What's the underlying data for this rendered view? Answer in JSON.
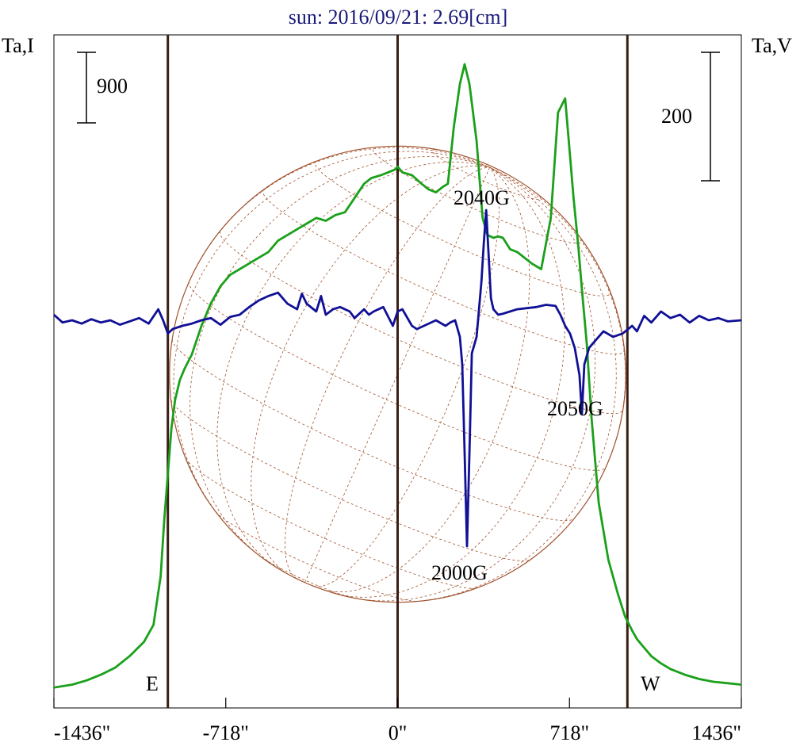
{
  "chart_data": {
    "type": "line",
    "title": "sun: 2016/09/21: 2.69[cm]",
    "title_color": "#1a1a7a",
    "ylabel_left": "Ta,I",
    "ylabel_right": "Ta,V",
    "xlim": [
      -1436,
      1436
    ],
    "x_ticks": [
      {
        "v": -1436,
        "label": "-1436\""
      },
      {
        "v": -718,
        "label": "-718\""
      },
      {
        "v": 0,
        "label": "0\""
      },
      {
        "v": 718,
        "label": "718\""
      },
      {
        "v": 1436,
        "label": "1436\""
      }
    ],
    "limb_labels": {
      "east": "E",
      "west": "W"
    },
    "scale_bars": {
      "left": "900",
      "right": "200"
    },
    "limb_lines_x": [
      -960,
      0,
      960
    ],
    "solar_radius": 953,
    "grid": false,
    "colors": {
      "intensity": "#1aa01a",
      "polarization": "#101096",
      "disk": "#a0522d",
      "limb_lines": "#3a1e14"
    },
    "annotations": [
      "2040G",
      "2050G",
      "2000G"
    ],
    "series": [
      {
        "key": "I",
        "color": "#1aa01a",
        "x": [
          -1436,
          -1360,
          -1300,
          -1240,
          -1180,
          -1120,
          -1060,
          -1020,
          -990,
          -975,
          -960,
          -945,
          -930,
          -910,
          -890,
          -860,
          -820,
          -780,
          -740,
          -700,
          -660,
          -620,
          -580,
          -540,
          -500,
          -460,
          -420,
          -380,
          -340,
          -300,
          -260,
          -220,
          -180,
          -140,
          -110,
          -70,
          -40,
          -10,
          0,
          20,
          60,
          100,
          130,
          160,
          190,
          210,
          235,
          260,
          280,
          300,
          330,
          355,
          375,
          400,
          420,
          440,
          470,
          500,
          530,
          560,
          600,
          640,
          670,
          700,
          720,
          735,
          755,
          770,
          790,
          810,
          840,
          880,
          920,
          950,
          980,
          1000,
          1030,
          1060,
          1100,
          1140,
          1200,
          1260,
          1320,
          1380,
          1436
        ],
        "y": [
          30,
          40,
          55,
          75,
          100,
          140,
          190,
          250,
          420,
          620,
          780,
          940,
          1040,
          1110,
          1150,
          1200,
          1300,
          1380,
          1440,
          1480,
          1500,
          1520,
          1540,
          1560,
          1600,
          1620,
          1640,
          1660,
          1680,
          1670,
          1690,
          1700,
          1750,
          1800,
          1820,
          1830,
          1840,
          1850,
          1860,
          1840,
          1830,
          1800,
          1780,
          1770,
          1790,
          1800,
          2000,
          2150,
          2220,
          2150,
          1950,
          1680,
          1620,
          1610,
          1615,
          1610,
          1570,
          1560,
          1540,
          1520,
          1500,
          1680,
          2050,
          2100,
          1900,
          1750,
          1580,
          1430,
          1240,
          980,
          680,
          480,
          360,
          280,
          230,
          200,
          170,
          140,
          115,
          95,
          75,
          60,
          50,
          45,
          40
        ]
      },
      {
        "key": "V",
        "color": "#101096",
        "x": [
          -1436,
          -1400,
          -1360,
          -1320,
          -1280,
          -1240,
          -1200,
          -1160,
          -1120,
          -1080,
          -1040,
          -1000,
          -980,
          -960,
          -940,
          -900,
          -860,
          -820,
          -780,
          -740,
          -700,
          -660,
          -620,
          -580,
          -540,
          -500,
          -480,
          -460,
          -420,
          -400,
          -380,
          -340,
          -320,
          -300,
          -270,
          -240,
          -200,
          -180,
          -140,
          -120,
          -100,
          -60,
          -20,
          0,
          20,
          60,
          80,
          120,
          160,
          200,
          220,
          240,
          260,
          270,
          280,
          290,
          300,
          310,
          330,
          350,
          360,
          370,
          380,
          390,
          400,
          420,
          440,
          470,
          500,
          540,
          580,
          620,
          660,
          680,
          700,
          720,
          740,
          760,
          770,
          780,
          800,
          820,
          860,
          900,
          940,
          980,
          1000,
          1030,
          1060,
          1100,
          1140,
          1180,
          1220,
          1260,
          1300,
          1340,
          1380,
          1436
        ],
        "y": [
          5,
          -2,
          0,
          -3,
          1,
          -2,
          0,
          -4,
          -1,
          2,
          -3,
          10,
          0,
          -12,
          -8,
          -5,
          -3,
          0,
          2,
          -4,
          3,
          5,
          12,
          18,
          22,
          25,
          20,
          15,
          10,
          24,
          15,
          8,
          22,
          5,
          10,
          12,
          8,
          2,
          10,
          5,
          8,
          12,
          -5,
          8,
          10,
          -5,
          -8,
          -4,
          0,
          -5,
          -2,
          0,
          -15,
          -40,
          -120,
          -205,
          -120,
          -30,
          -15,
          35,
          70,
          100,
          60,
          20,
          10,
          5,
          6,
          8,
          10,
          11,
          12,
          14,
          13,
          5,
          -5,
          -12,
          -25,
          -50,
          -85,
          -40,
          -25,
          -20,
          -10,
          -15,
          -12,
          -5,
          -10,
          4,
          -2,
          8,
          2,
          5,
          -2,
          4,
          0,
          2,
          -1,
          0
        ]
      }
    ]
  }
}
